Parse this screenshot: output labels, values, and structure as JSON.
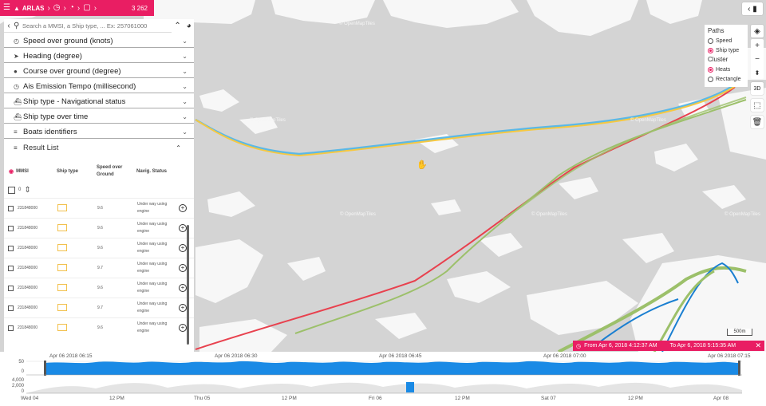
{
  "topbar": {
    "brand": "ARLAS",
    "count": "3 262",
    "accent": "#e91e63"
  },
  "search": {
    "placeholder": "Search a MMSI, a Ship type, ... Ex: 257061000"
  },
  "widgets": [
    {
      "label": "Speed over ground (knots)",
      "icon": "speedometer-icon"
    },
    {
      "label": "Heading (degree)",
      "icon": "navigation-arrow-icon"
    },
    {
      "label": "Course over ground (degree)",
      "icon": "compass-icon"
    },
    {
      "label": "Ais Emission Tempo (millisecond)",
      "icon": "clock-icon"
    },
    {
      "label": "Ship type - Navigational status",
      "icon": "ship-icon"
    },
    {
      "label": "Ship type over time",
      "icon": "ship-icon"
    },
    {
      "label": "Boats identifiers",
      "icon": "list-icon"
    }
  ],
  "result_list": {
    "title": "Result List",
    "columns": [
      "MMSI",
      "Ship type",
      "Speed over Ground",
      "Navig. Status"
    ],
    "selected_count": "0",
    "rows": [
      {
        "mmsi": "231848000",
        "sog": "9.6",
        "status": "Under way using engine"
      },
      {
        "mmsi": "231848000",
        "sog": "9.6",
        "status": "Under way using engine"
      },
      {
        "mmsi": "231848000",
        "sog": "9.6",
        "status": "Under way using engine"
      },
      {
        "mmsi": "231848000",
        "sog": "9.7",
        "status": "Under way using engine"
      },
      {
        "mmsi": "231848000",
        "sog": "9.6",
        "status": "Under way using engine"
      },
      {
        "mmsi": "231848000",
        "sog": "9.7",
        "status": "Under way using engine"
      },
      {
        "mmsi": "231848000",
        "sog": "9.6",
        "status": "Under way using engine"
      }
    ]
  },
  "layers": {
    "paths_title": "Paths",
    "paths_options": [
      "Speed",
      "Ship type"
    ],
    "cluster_title": "Cluster",
    "cluster_options": [
      "Heats",
      "Rectangle"
    ]
  },
  "controls": {
    "btn_3d": "3D",
    "zoom_in": "+",
    "zoom_out": "−"
  },
  "map": {
    "place_label": "© OpenMapTiles",
    "scale": "500m",
    "colors": {
      "red": "#e8414e",
      "yellow": "#f5c842",
      "blue": "#5bb8e6",
      "green": "#9cc06a",
      "deep_blue": "#1a7fd1"
    }
  },
  "range": {
    "from": "From Apr 6, 2018 4:12:37 AM",
    "to": "To Apr 6, 2018 5:15:35 AM"
  },
  "timeline": {
    "detail_ticks": [
      "Apr 06 2018 06:15",
      "Apr 06 2018 06:30",
      "Apr 06 2018 06:45",
      "Apr 06 2018 07:00",
      "Apr 06 2018 07:15"
    ],
    "detail_axis": [
      "50",
      "0"
    ],
    "overview_axis": [
      "4,000",
      "2,000",
      "0"
    ],
    "overview_ticks": [
      "Wed 04",
      "12 PM",
      "Thu 05",
      "12 PM",
      "Fri 06",
      "12 PM",
      "Sat 07",
      "12 PM",
      "Apr 08"
    ]
  }
}
